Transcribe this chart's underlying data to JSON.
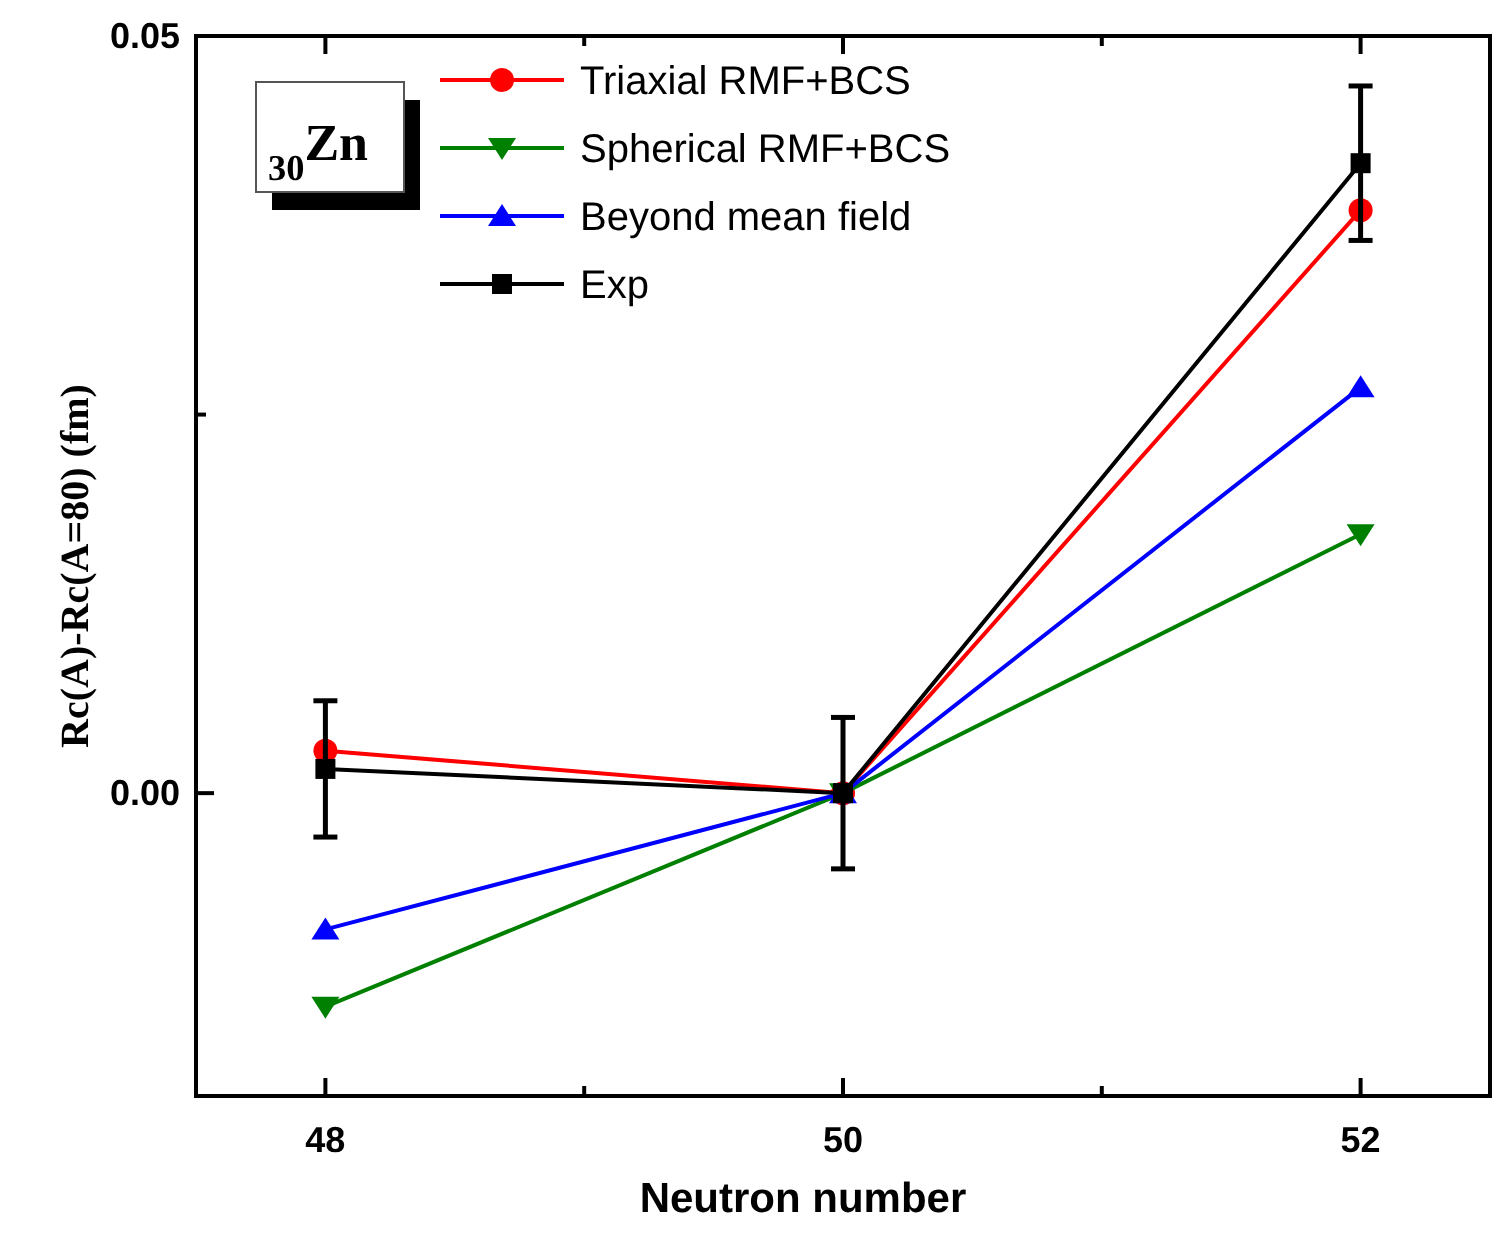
{
  "chart_data": {
    "type": "line",
    "xlabel": "Neutron number",
    "ylabel": "Rc(A)-Rc(A=80) (fm)",
    "x": [
      48,
      50,
      52
    ],
    "series": [
      {
        "name": "Triaxial RMF+BCS",
        "color": "#ff0000",
        "marker": "circle",
        "values": [
          0.0028,
          0,
          0.0385
        ]
      },
      {
        "name": "Spherical RMF+BCS",
        "color": "#008000",
        "marker": "triangle-down",
        "values": [
          -0.0141,
          0,
          0.0171
        ]
      },
      {
        "name": "Beyond mean field",
        "color": "#0000ff",
        "marker": "triangle",
        "values": [
          -0.009,
          0,
          0.0268
        ]
      },
      {
        "name": "Exp",
        "color": "#000000",
        "marker": "square",
        "values": [
          0.0016,
          0,
          0.0416
        ],
        "errors": [
          0.0045,
          0.005,
          0.0051
        ]
      }
    ],
    "xlim": [
      47.5,
      52.5
    ],
    "xticks": [
      48,
      {
        "value": 49,
        "label": null
      },
      50,
      {
        "value": 51,
        "label": null
      },
      52
    ],
    "ylim": [
      -0.02,
      0.05
    ],
    "yticks": [
      {
        "value": 0,
        "label": "0.00"
      },
      {
        "value": 0.025,
        "label": null
      },
      0.05
    ],
    "annotations": [
      "$_{30}$Zn"
    ],
    "legend": "top left",
    "grid": false
  }
}
